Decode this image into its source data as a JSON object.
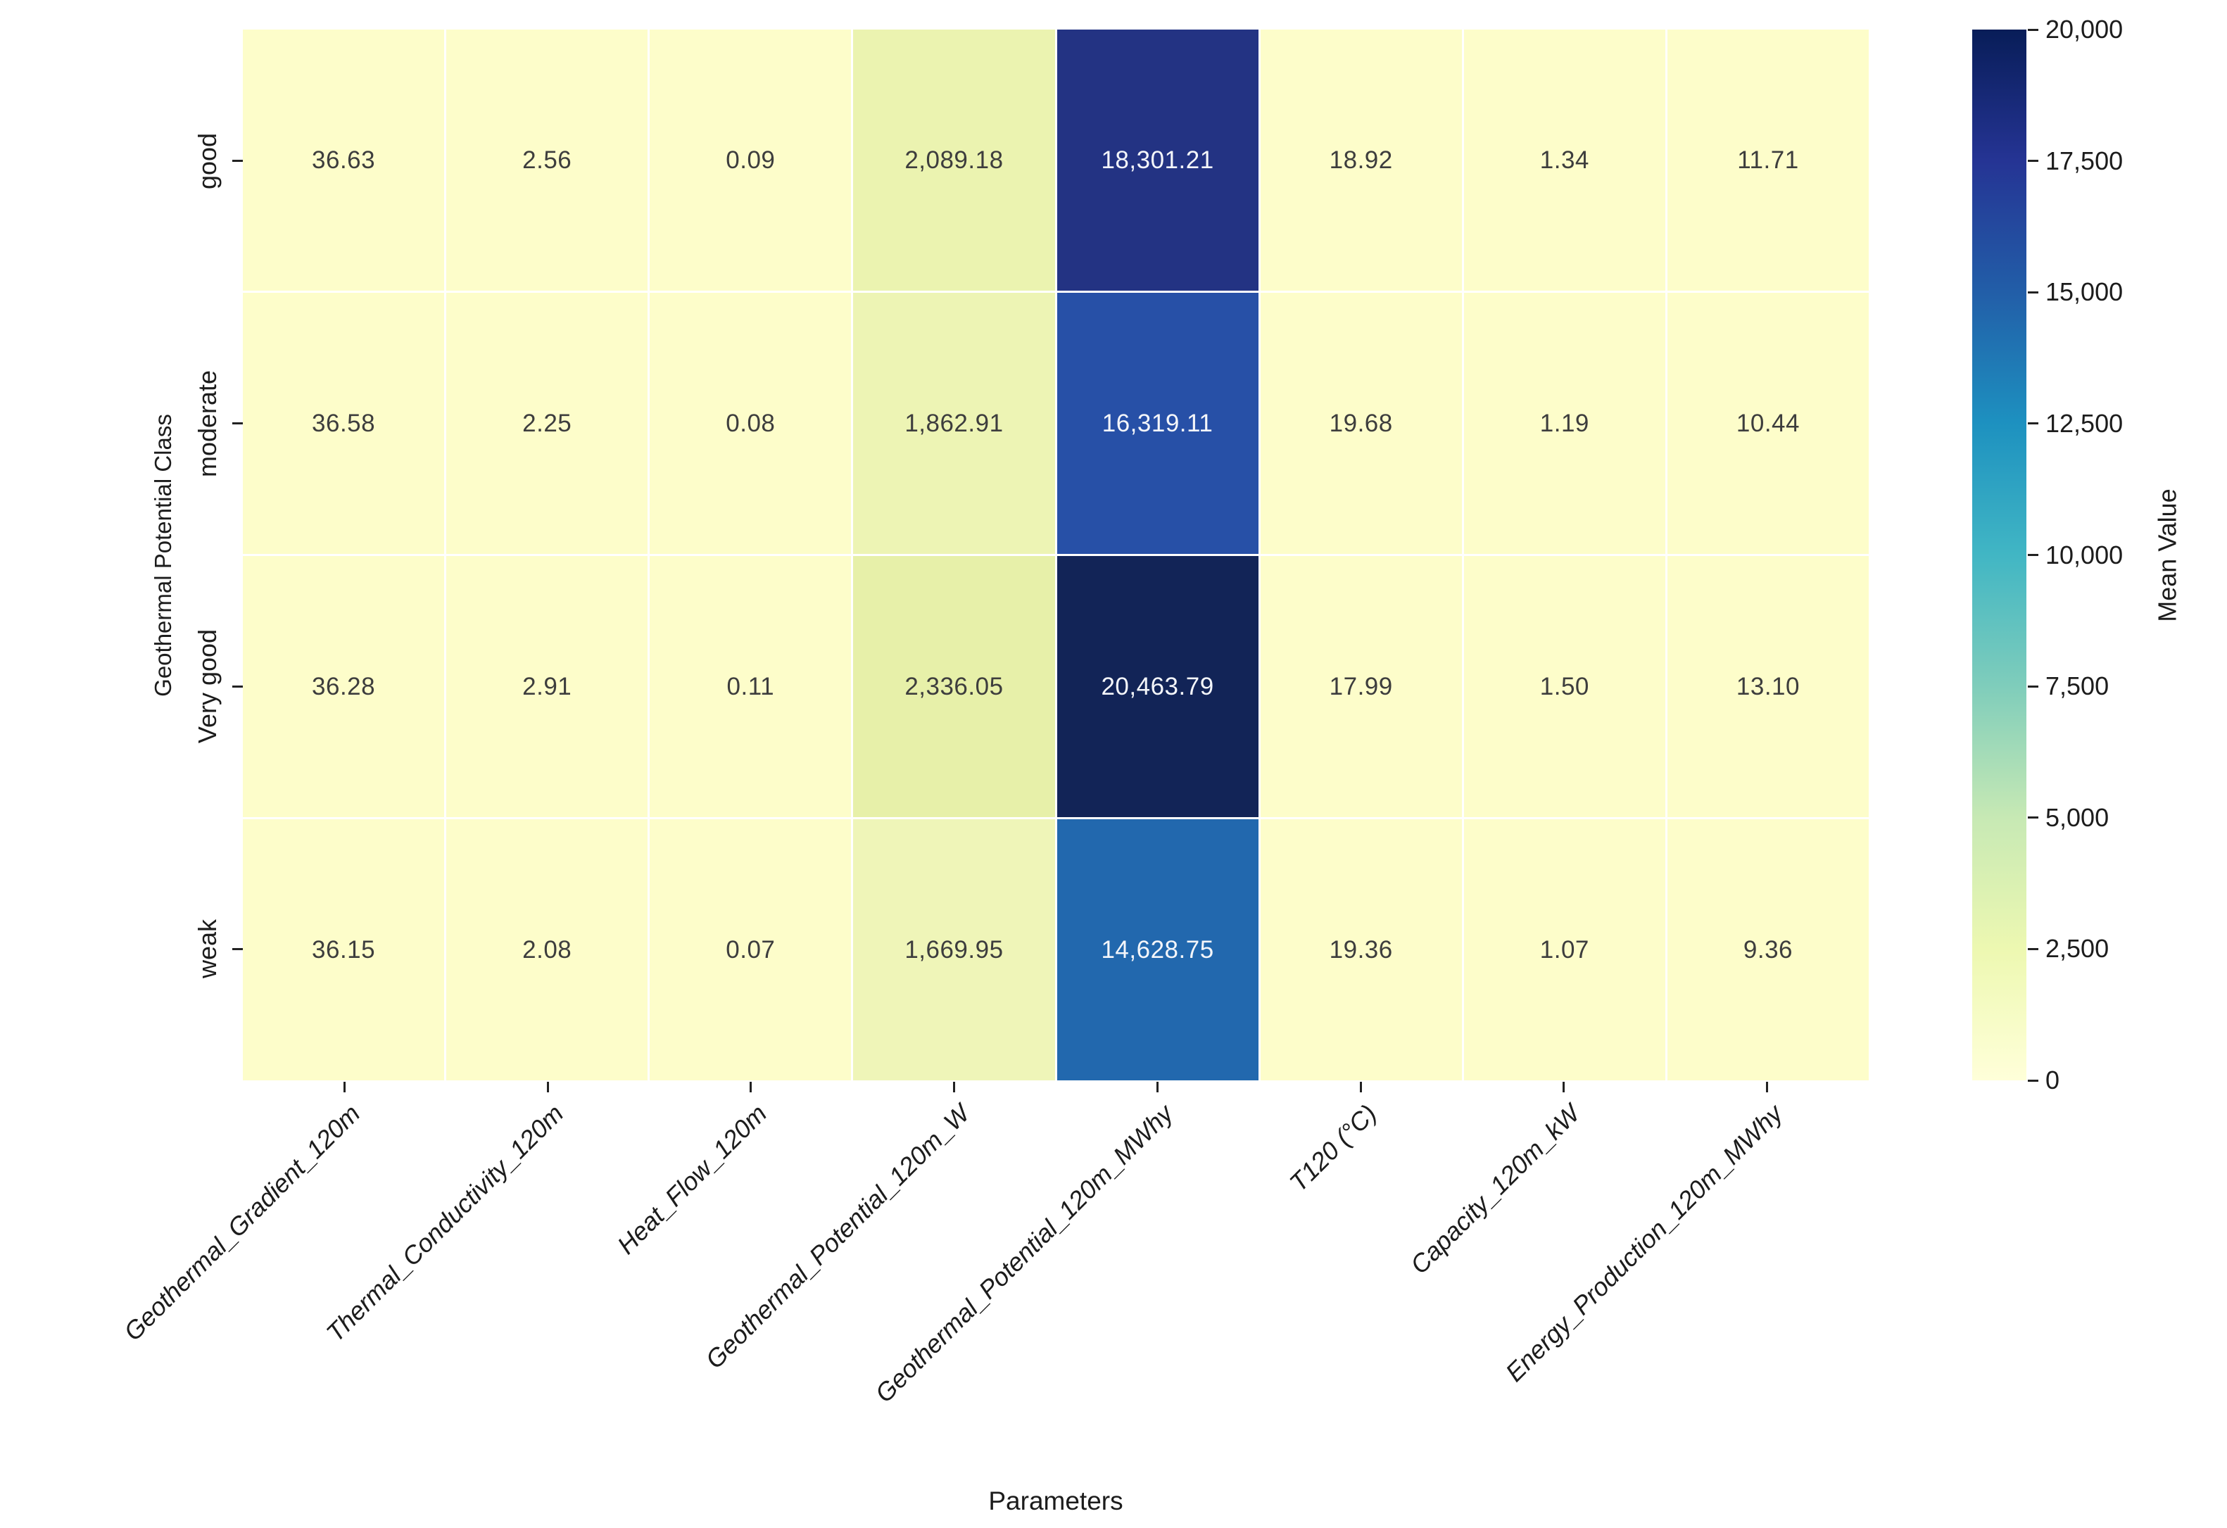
{
  "chart_data": {
    "type": "heatmap",
    "title": "",
    "xlabel": "Parameters",
    "ylabel": "Geothermal Potential Class",
    "colorbar_label": "Mean Value",
    "rows": [
      "good",
      "moderate",
      "Very good",
      "weak"
    ],
    "columns": [
      "Geothermal_Gradient_120m",
      "Thermal_Conductivity_120m",
      "Heat_Flow_120m",
      "Geothermal_Potential_120m_W",
      "Geothermal_Potential_120m_MWhy",
      "T120 (°C)",
      "Capacity_120m_kW",
      "Energy_Production_120m_MWhy"
    ],
    "values": [
      [
        36.63,
        2.56,
        0.09,
        2089.18,
        18301.21,
        18.92,
        1.34,
        11.71
      ],
      [
        36.58,
        2.25,
        0.08,
        1862.91,
        16319.11,
        19.68,
        1.19,
        10.44
      ],
      [
        36.28,
        2.91,
        0.11,
        2336.05,
        20463.79,
        17.99,
        1.5,
        13.1
      ],
      [
        36.15,
        2.08,
        0.07,
        1669.95,
        14628.75,
        19.36,
        1.07,
        9.36
      ]
    ],
    "value_labels": [
      [
        "36.63",
        "2.56",
        "0.09",
        "2,089.18",
        "18,301.21",
        "18.92",
        "1.34",
        "11.71"
      ],
      [
        "36.58",
        "2.25",
        "0.08",
        "1,862.91",
        "16,319.11",
        "19.68",
        "1.19",
        "10.44"
      ],
      [
        "36.28",
        "2.91",
        "0.11",
        "2,336.05",
        "20,463.79",
        "17.99",
        "1.50",
        "13.10"
      ],
      [
        "36.15",
        "2.08",
        "0.07",
        "1,669.95",
        "14,628.75",
        "19.36",
        "1.07",
        "9.36"
      ]
    ],
    "cell_colors": [
      [
        "#fdfdca",
        "#fdfdca",
        "#fdfdca",
        "#ebf3b0",
        "#233383",
        "#fdfdca",
        "#fdfdca",
        "#fdfdca"
      ],
      [
        "#fdfdca",
        "#fdfdca",
        "#fdfdca",
        "#edf4b4",
        "#2750a7",
        "#fdfdca",
        "#fdfdca",
        "#fdfdca"
      ],
      [
        "#fdfdca",
        "#fdfdca",
        "#fdfdca",
        "#e7f0a9",
        "#122457",
        "#fdfdca",
        "#fdfdca",
        "#fdfdca"
      ],
      [
        "#fdfdca",
        "#fdfdca",
        "#fdfdca",
        "#eff5b8",
        "#2268ae",
        "#fdfdca",
        "#fdfdca",
        "#fdfdca"
      ]
    ],
    "colorbar_ticks": [
      "20,000",
      "17,500",
      "15,000",
      "12,500",
      "10,000",
      "7,500",
      "5,000",
      "2,500",
      "0"
    ],
    "colorbar_range": [
      0,
      20000
    ],
    "colormap": "YlGnBu",
    "colormap_stops_top_to_bottom": [
      "#081d58",
      "#253494",
      "#225ea8",
      "#1d91c0",
      "#41b6c4",
      "#7fcdbb",
      "#c7e9b4",
      "#edf8b1",
      "#ffffd9"
    ],
    "gridline_color": "#ffffff",
    "text_color_dark": "#3d3d3d",
    "text_color_light": "#f4f6fa",
    "legend_position": "right-colorbar",
    "grid": false
  }
}
